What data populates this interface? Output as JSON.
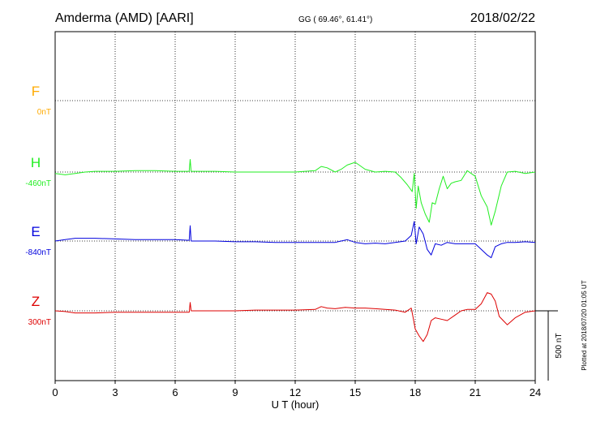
{
  "header": {
    "station": "Amderma (AMD)  [AARI]",
    "coords": "GG ( 69.46°,  61.41°)",
    "date": "2018/02/22"
  },
  "plotted_note": "Plotted at 2018/07/20 01:05 UT",
  "chart_data": {
    "type": "line",
    "xlabel": "U T (hour)",
    "xlim": [
      0,
      24
    ],
    "xticks": [
      "0",
      "3",
      "6",
      "9",
      "12",
      "15",
      "18",
      "21",
      "24"
    ],
    "grid": true,
    "scale_bar": {
      "label": "500 nT",
      "value_nT": 500
    },
    "series": [
      {
        "name": "F",
        "baseline_label": "0nT",
        "color": "#ffaa00",
        "baseline_nT": 0,
        "x": [],
        "y": []
      },
      {
        "name": "H",
        "baseline_label": "-460nT",
        "color": "#22ee22",
        "baseline_nT": -460,
        "x": [
          0,
          0.5,
          1,
          1.5,
          2,
          3,
          4,
          5,
          6,
          6.7,
          6.75,
          6.8,
          7,
          8,
          9,
          10,
          11,
          12,
          12.5,
          13,
          13.3,
          13.6,
          14,
          14.3,
          14.6,
          15,
          15.2,
          15.5,
          16,
          16.5,
          17,
          17.3,
          17.6,
          17.85,
          17.95,
          18.05,
          18.15,
          18.3,
          18.5,
          18.7,
          18.85,
          19,
          19.2,
          19.4,
          19.6,
          19.8,
          20,
          20.3,
          20.6,
          21,
          21.3,
          21.6,
          21.8,
          22,
          22.3,
          22.6,
          23,
          23.5,
          24
        ],
        "y": [
          -470,
          -480,
          -470,
          -460,
          -455,
          -455,
          -450,
          -450,
          -455,
          -455,
          -370,
          -455,
          -455,
          -455,
          -460,
          -460,
          -460,
          -460,
          -455,
          -450,
          -420,
          -430,
          -460,
          -440,
          -410,
          -390,
          -410,
          -440,
          -460,
          -455,
          -460,
          -500,
          -550,
          -600,
          -470,
          -720,
          -560,
          -680,
          -760,
          -820,
          -680,
          -690,
          -580,
          -490,
          -580,
          -540,
          -530,
          -520,
          -450,
          -490,
          -630,
          -710,
          -840,
          -740,
          -560,
          -460,
          -455,
          -470,
          -460
        ]
      },
      {
        "name": "E",
        "baseline_label": "-840nT",
        "color": "#0000dd",
        "baseline_nT": -840,
        "x": [
          0,
          0.5,
          1,
          1.5,
          2,
          3,
          4,
          5,
          6,
          6.7,
          6.75,
          6.8,
          7,
          8,
          9,
          10,
          11,
          12,
          13,
          14,
          14.3,
          14.6,
          15,
          15.5,
          16,
          16.5,
          17,
          17.5,
          17.8,
          17.95,
          18.05,
          18.2,
          18.4,
          18.6,
          18.8,
          19,
          19.3,
          19.6,
          20,
          20.5,
          21,
          21.3,
          21.6,
          21.8,
          22,
          22.3,
          22.6,
          23,
          23.5,
          24
        ],
        "y": [
          -840,
          -830,
          -820,
          -820,
          -820,
          -825,
          -830,
          -830,
          -830,
          -835,
          -730,
          -840,
          -840,
          -840,
          -845,
          -845,
          -850,
          -850,
          -850,
          -850,
          -840,
          -830,
          -850,
          -860,
          -855,
          -860,
          -850,
          -840,
          -800,
          -700,
          -860,
          -740,
          -790,
          -900,
          -940,
          -860,
          -870,
          -850,
          -860,
          -860,
          -860,
          -900,
          -940,
          -960,
          -880,
          -860,
          -850,
          -850,
          -845,
          -850
        ]
      },
      {
        "name": "Z",
        "baseline_label": "300nT",
        "color": "#dd0000",
        "baseline_nT": 300,
        "x": [
          0,
          0.5,
          1,
          1.5,
          2,
          3,
          4,
          5,
          6,
          6.7,
          6.75,
          6.8,
          7,
          8,
          9,
          10,
          11,
          12,
          13,
          13.3,
          13.6,
          14,
          14.5,
          15,
          15.5,
          16,
          16.5,
          17,
          17.5,
          17.8,
          17.9,
          18,
          18.2,
          18.4,
          18.6,
          18.8,
          19,
          19.3,
          19.6,
          20,
          20.3,
          20.6,
          21,
          21.3,
          21.6,
          21.8,
          22,
          22.2,
          22.4,
          22.6,
          23,
          23.5,
          24
        ],
        "y": [
          300,
          295,
          285,
          285,
          285,
          290,
          290,
          290,
          290,
          290,
          360,
          300,
          300,
          300,
          300,
          305,
          305,
          305,
          310,
          330,
          320,
          315,
          325,
          320,
          320,
          315,
          310,
          305,
          290,
          320,
          250,
          170,
          120,
          80,
          130,
          230,
          250,
          240,
          230,
          270,
          300,
          310,
          310,
          350,
          430,
          420,
          370,
          260,
          230,
          200,
          250,
          290,
          300
        ]
      }
    ]
  }
}
